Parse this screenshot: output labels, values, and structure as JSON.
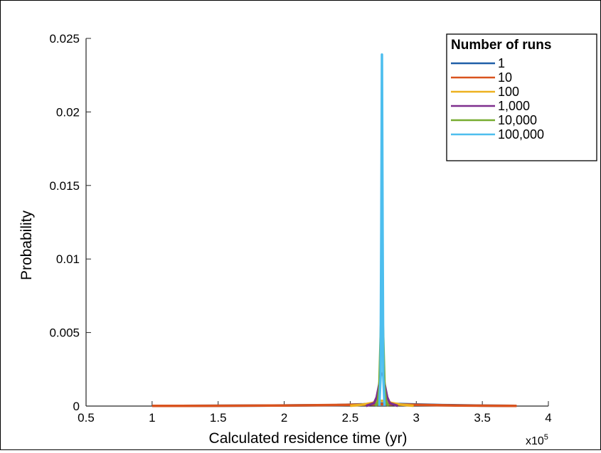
{
  "chart_data": {
    "type": "line",
    "xlabel": "Calculated residence time (yr)",
    "ylabel": "Probability",
    "x_multiplier_label": "x10",
    "x_multiplier_exponent": "5",
    "xlim": [
      0.5,
      4
    ],
    "ylim": [
      0,
      0.025
    ],
    "x_ticks": [
      "0.5",
      "1",
      "1.5",
      "2",
      "2.5",
      "3",
      "3.5",
      "4"
    ],
    "y_ticks": [
      "0",
      "0.005",
      "0.01",
      "0.015",
      "0.02",
      "0.025"
    ],
    "x_tick_values": [
      0.5,
      1,
      1.5,
      2,
      2.5,
      3,
      3.5,
      4
    ],
    "y_tick_values": [
      0,
      0.005,
      0.01,
      0.015,
      0.02,
      0.025
    ],
    "grid": false,
    "legend": {
      "title": "Number of runs",
      "position": "top-right"
    },
    "series": [
      {
        "name": "1",
        "color": "#1f5fa8",
        "x": [
          1.22,
          1.8,
          2.4,
          2.6,
          2.68,
          2.72,
          2.74,
          2.76,
          2.8,
          2.95,
          3.2,
          3.5,
          3.75
        ],
        "y": [
          1e-05,
          3e-05,
          7e-05,
          0.00012,
          0.00016,
          0.00017,
          0.00017,
          0.00017,
          0.00016,
          0.00012,
          7e-05,
          3e-05,
          1e-05
        ]
      },
      {
        "name": "10",
        "color": "#d9531e",
        "x": [
          1.0,
          1.5,
          2.0,
          2.5,
          2.65,
          2.72,
          2.74,
          2.76,
          2.83,
          3.0,
          3.3,
          3.6,
          3.76
        ],
        "y": [
          1e-05,
          2e-05,
          4e-05,
          8e-05,
          0.00011,
          0.00013,
          0.00013,
          0.00013,
          0.00011,
          8e-05,
          4e-05,
          2e-05,
          1e-05
        ]
      },
      {
        "name": "100",
        "color": "#edb120",
        "x": [
          2.5,
          2.6,
          2.66,
          2.7,
          2.72,
          2.74,
          2.76,
          2.78,
          2.82,
          2.88,
          2.98
        ],
        "y": [
          2e-05,
          0.0001,
          0.0002,
          0.0003,
          0.00035,
          0.00036,
          0.00035,
          0.0003,
          0.0002,
          0.0001,
          2e-05
        ]
      },
      {
        "name": "1,000",
        "color": "#7e2f8e",
        "x": [
          2.62,
          2.68,
          2.7,
          2.72,
          2.73,
          2.74,
          2.75,
          2.76,
          2.78,
          2.8,
          2.86
        ],
        "y": [
          1e-05,
          0.0002,
          0.0006,
          0.0015,
          0.0021,
          0.0022,
          0.0021,
          0.0015,
          0.0006,
          0.0002,
          1e-05
        ]
      },
      {
        "name": "10,000",
        "color": "#77ac30",
        "x": [
          2.69,
          2.71,
          2.72,
          2.73,
          2.74,
          2.75,
          2.76,
          2.77,
          2.79
        ],
        "y": [
          1e-05,
          0.0003,
          0.0012,
          0.0045,
          0.0075,
          0.0045,
          0.0012,
          0.0003,
          1e-05
        ]
      },
      {
        "name": "100,000",
        "color": "#4dbeee",
        "x": [
          2.72,
          2.73,
          2.735,
          2.74,
          2.745,
          2.75,
          2.76
        ],
        "y": [
          1e-05,
          0.002,
          0.012,
          0.0239,
          0.012,
          0.002,
          1e-05
        ]
      }
    ]
  }
}
